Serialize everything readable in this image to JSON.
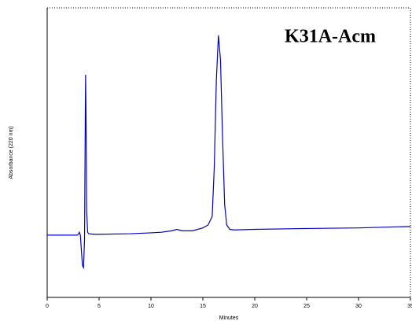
{
  "chart_data": {
    "type": "line",
    "annotation": "K31A-Acm",
    "x_label": "Minutes",
    "y_label": "Absorbance (220 nm)",
    "xlim": [
      0,
      35
    ],
    "xticks": [
      0,
      5,
      10,
      15,
      20,
      25,
      30,
      35
    ],
    "ylim": [
      0,
      100
    ],
    "series": [
      {
        "color": "#0000cc",
        "x": [
          0,
          2.9,
          3.0,
          3.1,
          3.2,
          3.3,
          3.4,
          3.5,
          3.6,
          3.65,
          3.7,
          3.75,
          3.8,
          3.9,
          4.0,
          4.5,
          5,
          8,
          10,
          11,
          12,
          12.5,
          13,
          14,
          15,
          15.5,
          15.9,
          16.1,
          16.3,
          16.5,
          16.7,
          16.9,
          17.1,
          17.3,
          17.6,
          18,
          20,
          25,
          30,
          35
        ],
        "values": [
          21.5,
          21.5,
          21.8,
          22.5,
          21.5,
          16,
          11,
          10.3,
          20,
          50,
          76.9,
          60,
          30,
          22.5,
          22,
          21.8,
          21.8,
          22,
          22.3,
          22.5,
          23,
          23.5,
          23,
          23,
          24,
          25,
          28,
          45,
          75,
          90.5,
          82,
          55,
          32,
          25,
          23.5,
          23.3,
          23.5,
          23.8,
          24,
          24.5
        ]
      }
    ]
  }
}
